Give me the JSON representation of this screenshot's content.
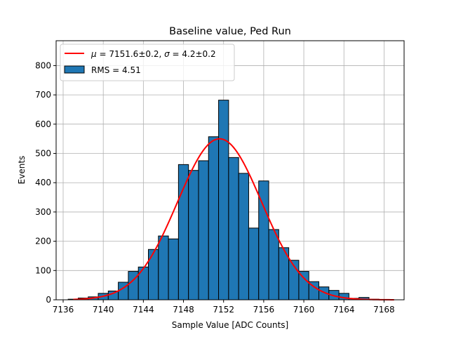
{
  "chart_data": {
    "type": "bar",
    "title": "Baseline value, Ped Run",
    "xlabel": "Sample Value [ADC Counts]",
    "ylabel": "Events",
    "xlim": [
      7135.3,
      7170.0
    ],
    "ylim": [
      0,
      885
    ],
    "grid": true,
    "legend_position": "top-left",
    "x_ticks": [
      7136,
      7140,
      7144,
      7148,
      7152,
      7156,
      7160,
      7164,
      7168
    ],
    "y_ticks": [
      0,
      100,
      200,
      300,
      400,
      500,
      600,
      700,
      800
    ],
    "bin_width": 1,
    "bins": [
      {
        "x": 7137,
        "value": 2
      },
      {
        "x": 7138,
        "value": 6
      },
      {
        "x": 7139,
        "value": 10
      },
      {
        "x": 7140,
        "value": 22
      },
      {
        "x": 7141,
        "value": 30
      },
      {
        "x": 7142,
        "value": 60
      },
      {
        "x": 7143,
        "value": 97
      },
      {
        "x": 7144,
        "value": 112
      },
      {
        "x": 7145,
        "value": 172
      },
      {
        "x": 7146,
        "value": 218
      },
      {
        "x": 7147,
        "value": 208
      },
      {
        "x": 7148,
        "value": 462
      },
      {
        "x": 7149,
        "value": 442
      },
      {
        "x": 7150,
        "value": 475
      },
      {
        "x": 7151,
        "value": 557
      },
      {
        "x": 7152,
        "value": 682
      },
      {
        "x": 7153,
        "value": 486
      },
      {
        "x": 7154,
        "value": 432
      },
      {
        "x": 7155,
        "value": 245
      },
      {
        "x": 7156,
        "value": 406
      },
      {
        "x": 7157,
        "value": 240
      },
      {
        "x": 7158,
        "value": 178
      },
      {
        "x": 7159,
        "value": 135
      },
      {
        "x": 7160,
        "value": 97
      },
      {
        "x": 7161,
        "value": 62
      },
      {
        "x": 7162,
        "value": 44
      },
      {
        "x": 7163,
        "value": 32
      },
      {
        "x": 7164,
        "value": 22
      },
      {
        "x": 7165,
        "value": 5
      },
      {
        "x": 7166,
        "value": 8
      },
      {
        "x": 7167,
        "value": 2
      },
      {
        "x": 7168,
        "value": 1
      }
    ],
    "series": [
      {
        "name": "RMS = 4.51",
        "kind": "histogram",
        "color": "#1f77b4",
        "edge_color": "#000000"
      },
      {
        "name": "fit",
        "kind": "gaussian_fit",
        "color": "#ff0000",
        "mu": 7151.6,
        "sigma": 4.2,
        "amplitude": 550,
        "x_range": [
          7137,
          7169
        ]
      }
    ],
    "legend": {
      "fit_prefix": " = 7151.6±0.2, ",
      "fit_suffix": " = 4.2±0.2",
      "mu_symbol": "μ",
      "sigma_symbol": "σ",
      "hist_label": "RMS = 4.51"
    }
  }
}
